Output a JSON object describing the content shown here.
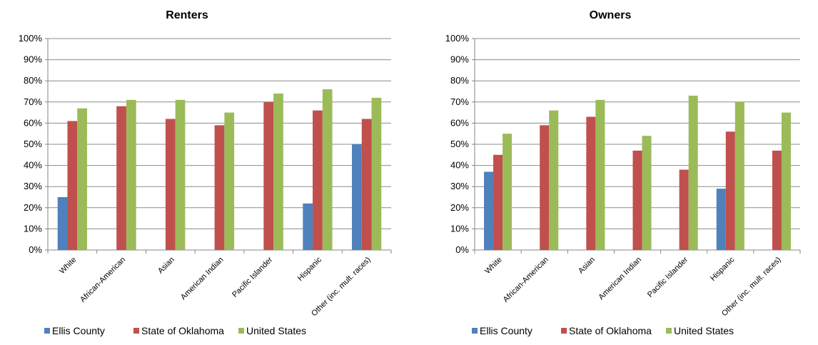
{
  "chart_data": [
    {
      "type": "bar",
      "title": "Renters",
      "xlabel": "",
      "ylabel": "",
      "ylim": [
        0,
        1
      ],
      "y_ticks": [
        "0%",
        "10%",
        "20%",
        "30%",
        "40%",
        "50%",
        "60%",
        "70%",
        "80%",
        "90%",
        "100%"
      ],
      "grid": true,
      "legend_position": "bottom",
      "categories": [
        "White",
        "African-American",
        "Asian",
        "American Indian",
        "Pacific Islander",
        "Hispanic",
        "Other (inc. mult. races)"
      ],
      "series": [
        {
          "name": "Ellis County",
          "color": "#4f81bd",
          "values": [
            0.25,
            null,
            null,
            null,
            null,
            0.22,
            0.5
          ]
        },
        {
          "name": "State of Oklahoma",
          "color": "#c0504d",
          "values": [
            0.61,
            0.68,
            0.62,
            0.59,
            0.7,
            0.66,
            0.62
          ]
        },
        {
          "name": "United States",
          "color": "#9bbb59",
          "values": [
            0.67,
            0.71,
            0.71,
            0.65,
            0.74,
            0.76,
            0.72
          ]
        }
      ]
    },
    {
      "type": "bar",
      "title": "Owners",
      "xlabel": "",
      "ylabel": "",
      "ylim": [
        0,
        1
      ],
      "y_ticks": [
        "0%",
        "10%",
        "20%",
        "30%",
        "40%",
        "50%",
        "60%",
        "70%",
        "80%",
        "90%",
        "100%"
      ],
      "grid": true,
      "legend_position": "bottom",
      "categories": [
        "White",
        "African-American",
        "Asian",
        "American Indian",
        "Pacific Islander",
        "Hispanic",
        "Other (inc. mult. races)"
      ],
      "series": [
        {
          "name": "Ellis County",
          "color": "#4f81bd",
          "values": [
            0.37,
            null,
            null,
            null,
            null,
            0.29,
            null
          ]
        },
        {
          "name": "State of Oklahoma",
          "color": "#c0504d",
          "values": [
            0.45,
            0.59,
            0.63,
            0.47,
            0.38,
            0.56,
            0.47
          ]
        },
        {
          "name": "United States",
          "color": "#9bbb59",
          "values": [
            0.55,
            0.66,
            0.71,
            0.54,
            0.73,
            0.7,
            0.65
          ]
        }
      ]
    }
  ]
}
